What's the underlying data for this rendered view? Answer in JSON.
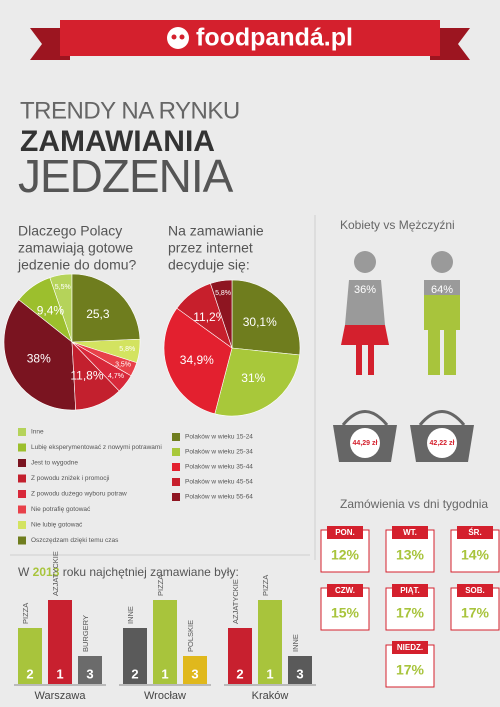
{
  "header": {
    "brand": "foodpandá.pl"
  },
  "headline": {
    "line1": "TRENDY NA RYNKU",
    "line2": "ZAMAWIANIA",
    "line3": "JEDZENIA"
  },
  "chart_data": [
    {
      "type": "pie",
      "title": [
        "Dlaczego Polacy",
        "zamawiają gotowe",
        "jedzenie do domu?"
      ],
      "categories": [
        "Inne",
        "Lubię eksperymentować z nowymi potrawami",
        "Jest to wygodne",
        "Z powodu zniżek i promocji",
        "Z powodu dużego wyboru potraw",
        "Nie potrafię gotować",
        "Nie lubię gotować",
        "Oszczędzam dzięki temu czas"
      ],
      "values": [
        5.5,
        9.4,
        38,
        11.8,
        4.7,
        3.5,
        5.8,
        25.3
      ],
      "value_labels": [
        "5,5%",
        "9,4%",
        "38%",
        "11,8%",
        "4,7%",
        "3,5%",
        "5,8%",
        "25,3"
      ],
      "colors": [
        "#b5d35a",
        "#9cbf2d",
        "#7a1420",
        "#c3202e",
        "#d8283a",
        "#e8414a",
        "#d3e360",
        "#6f7d1e"
      ],
      "clockwise": false
    },
    {
      "type": "pie",
      "title": [
        "Na zamawianie",
        "przez internet",
        "decyduje się:"
      ],
      "categories": [
        "Polaków w wieku 15-24",
        "Polaków w wieku 25-34",
        "Polaków w wieku 35-44",
        "Polaków w wieku 45-54",
        "Polaków w wieku 55-64"
      ],
      "values": [
        30.1,
        31,
        34.9,
        11.2,
        5.8
      ],
      "value_labels": [
        "30,1%",
        "31%",
        "34,9%",
        "11,2%",
        "5,8%"
      ],
      "colors": [
        "#6f7d1e",
        "#a8c83a",
        "#e3202f",
        "#c71f2c",
        "#8e1521"
      ],
      "clockwise": true
    }
  ],
  "gender": {
    "title": "Kobiety vs Mężczyźni",
    "women": "36%",
    "men": "64%",
    "women_basket": "44,29 zł",
    "men_basket": "42,22 zł"
  },
  "days": {
    "title": "Zamówienia vs dni tygodnia",
    "items": [
      {
        "day": "PON.",
        "share": "12%"
      },
      {
        "day": "WT.",
        "share": "13%"
      },
      {
        "day": "ŚR.",
        "share": "14%"
      },
      {
        "day": "CZW.",
        "share": "15%"
      },
      {
        "day": "PIĄT.",
        "share": "17%"
      },
      {
        "day": "SOB.",
        "share": "17%"
      },
      {
        "day": "NIEDZ.",
        "share": "17%"
      }
    ]
  },
  "ranking": {
    "title_start": "W ",
    "year": "2013",
    "title_end": " roku najchętniej zamawiane były:",
    "cities": [
      {
        "name": "Warszawa",
        "items": [
          {
            "name": "PIZZA",
            "rank": 2,
            "color": "#a8c43c"
          },
          {
            "name": "AZJATYCKIE",
            "rank": 1,
            "color": "#c8202f"
          },
          {
            "name": "BURGERY",
            "rank": 3,
            "color": "#6b6b6b"
          }
        ]
      },
      {
        "name": "Wrocław",
        "items": [
          {
            "name": "INNE",
            "rank": 2,
            "color": "#5a5a5a"
          },
          {
            "name": "PIZZA",
            "rank": 1,
            "color": "#a8c43c"
          },
          {
            "name": "POLSKIE",
            "rank": 3,
            "color": "#e0b81c"
          }
        ]
      },
      {
        "name": "Kraków",
        "items": [
          {
            "name": "AZJATYCKIE",
            "rank": 2,
            "color": "#c8202f"
          },
          {
            "name": "PIZZA",
            "rank": 1,
            "color": "#a8c43c"
          },
          {
            "name": "INNE",
            "rank": 3,
            "color": "#5a5a5a"
          }
        ]
      }
    ]
  }
}
